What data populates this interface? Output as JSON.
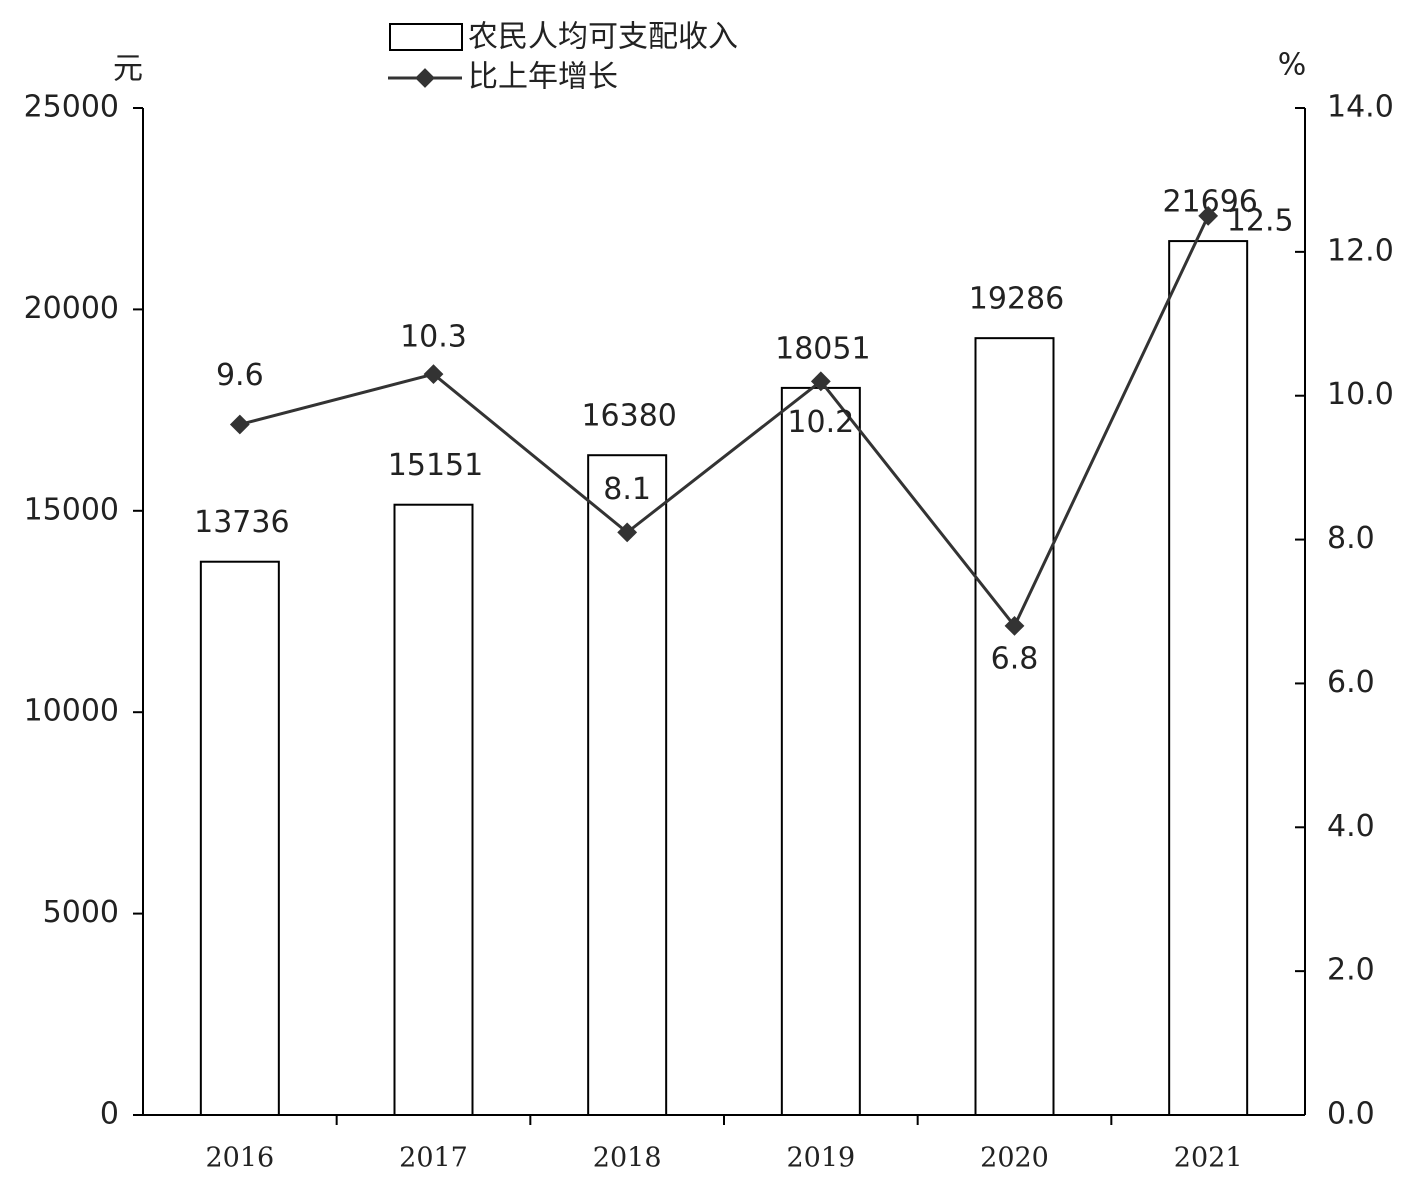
{
  "chart_data": {
    "type": "bar-line",
    "y_unit": "元",
    "y2_unit": "%",
    "categories": [
      "2016",
      "2017",
      "2018",
      "2019",
      "2020",
      "2021"
    ],
    "series": [
      {
        "name": "农民人均可支配收入",
        "type": "bar",
        "color": "#ffffff",
        "values": [
          13736,
          15151,
          16380,
          18051,
          19286,
          21696
        ]
      },
      {
        "name": "比上年增长",
        "type": "line",
        "axis": "y2",
        "color": "#333333",
        "values": [
          9.6,
          10.3,
          8.1,
          10.2,
          6.8,
          12.5
        ]
      }
    ],
    "ylim": [
      0,
      25000
    ],
    "yticks": [
      0,
      5000,
      10000,
      15000,
      20000,
      25000
    ],
    "y2lim": [
      0,
      14
    ],
    "y2ticks": [
      {
        "value": 0,
        "label": "0.0"
      },
      {
        "value": 2,
        "label": "2.0"
      },
      {
        "value": 4,
        "label": "4.0"
      },
      {
        "value": 6,
        "label": "6.0"
      },
      {
        "value": 8,
        "label": "8.0"
      },
      {
        "value": 10,
        "label": "10.0"
      },
      {
        "value": 12,
        "label": "12.0"
      },
      {
        "value": 14,
        "label": "14.0"
      }
    ]
  }
}
